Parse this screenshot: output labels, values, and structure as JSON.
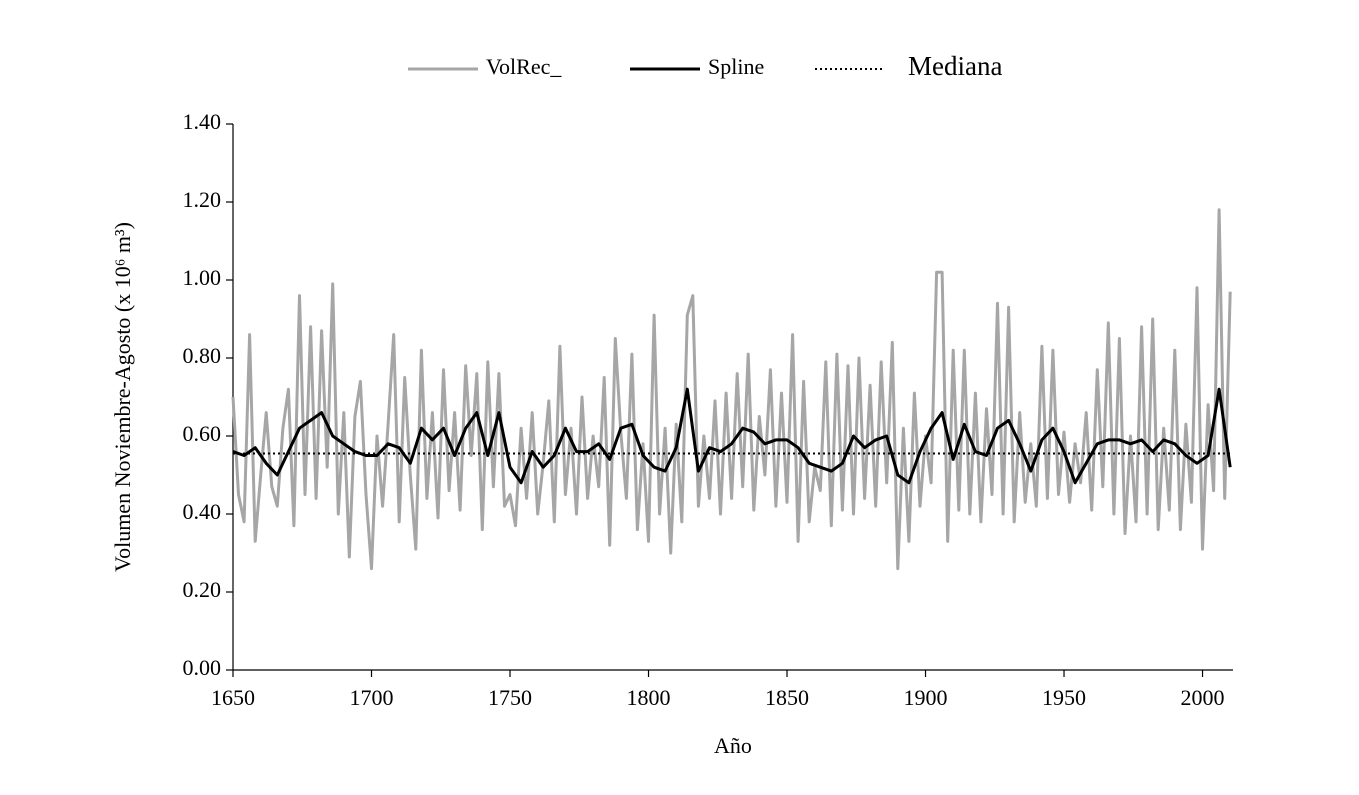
{
  "chart_data": {
    "type": "line",
    "xlabel": "Año",
    "ylabel": "Volumen Noviembre-Agosto (x 10⁶ m³)",
    "xlim": [
      1650,
      2011
    ],
    "xticks": [
      1650,
      1700,
      1750,
      1800,
      1850,
      1900,
      1950,
      2000
    ],
    "ylim": [
      0,
      1.4
    ],
    "yticks": [
      {
        "value": 0,
        "label": "0.00"
      },
      {
        "value": 0.2,
        "label": "0.20"
      },
      {
        "value": 0.4,
        "label": "0.40"
      },
      {
        "value": 0.6,
        "label": "0.60"
      },
      {
        "value": 0.8,
        "label": "0.80"
      },
      {
        "value": 1.0,
        "label": "1.00"
      },
      {
        "value": 1.2,
        "label": "1.20"
      },
      {
        "value": 1.4,
        "label": "1.40"
      }
    ],
    "legend": "top",
    "series": [
      {
        "name": "VolRec_",
        "color": "#a6a6a6",
        "style": "solid",
        "width": 3,
        "x": [
          1650,
          1652,
          1654,
          1656,
          1658,
          1660,
          1662,
          1664,
          1666,
          1668,
          1670,
          1672,
          1674,
          1676,
          1678,
          1680,
          1682,
          1684,
          1686,
          1688,
          1690,
          1692,
          1694,
          1696,
          1698,
          1700,
          1702,
          1704,
          1706,
          1708,
          1710,
          1712,
          1714,
          1716,
          1718,
          1720,
          1722,
          1724,
          1726,
          1728,
          1730,
          1732,
          1734,
          1736,
          1738,
          1740,
          1742,
          1744,
          1746,
          1748,
          1750,
          1752,
          1754,
          1756,
          1758,
          1760,
          1762,
          1764,
          1766,
          1768,
          1770,
          1772,
          1774,
          1776,
          1778,
          1780,
          1782,
          1784,
          1786,
          1788,
          1790,
          1792,
          1794,
          1796,
          1798,
          1800,
          1802,
          1804,
          1806,
          1808,
          1810,
          1812,
          1814,
          1816,
          1818,
          1820,
          1822,
          1824,
          1826,
          1828,
          1830,
          1832,
          1834,
          1836,
          1838,
          1840,
          1842,
          1844,
          1846,
          1848,
          1850,
          1852,
          1854,
          1856,
          1858,
          1860,
          1862,
          1864,
          1866,
          1868,
          1870,
          1872,
          1874,
          1876,
          1878,
          1880,
          1882,
          1884,
          1886,
          1888,
          1890,
          1892,
          1894,
          1896,
          1898,
          1900,
          1902,
          1904,
          1906,
          1908,
          1910,
          1912,
          1914,
          1916,
          1918,
          1920,
          1922,
          1924,
          1926,
          1928,
          1930,
          1932,
          1934,
          1936,
          1938,
          1940,
          1942,
          1944,
          1946,
          1948,
          1950,
          1952,
          1954,
          1956,
          1958,
          1960,
          1962,
          1964,
          1966,
          1968,
          1970,
          1972,
          1974,
          1976,
          1978,
          1980,
          1982,
          1984,
          1986,
          1988,
          1990,
          1992,
          1994,
          1996,
          1998,
          2000,
          2002,
          2004,
          2006,
          2008,
          2010
        ],
        "values": [
          0.7,
          0.45,
          0.38,
          0.86,
          0.33,
          0.5,
          0.66,
          0.47,
          0.42,
          0.62,
          0.72,
          0.37,
          0.96,
          0.45,
          0.88,
          0.44,
          0.87,
          0.52,
          0.99,
          0.4,
          0.66,
          0.29,
          0.65,
          0.74,
          0.45,
          0.26,
          0.6,
          0.42,
          0.63,
          0.86,
          0.38,
          0.75,
          0.5,
          0.31,
          0.82,
          0.44,
          0.66,
          0.39,
          0.77,
          0.46,
          0.66,
          0.41,
          0.78,
          0.55,
          0.76,
          0.36,
          0.79,
          0.47,
          0.76,
          0.42,
          0.45,
          0.37,
          0.62,
          0.44,
          0.66,
          0.4,
          0.53,
          0.69,
          0.38,
          0.83,
          0.45,
          0.62,
          0.4,
          0.7,
          0.44,
          0.6,
          0.47,
          0.75,
          0.32,
          0.85,
          0.61,
          0.44,
          0.81,
          0.36,
          0.58,
          0.33,
          0.91,
          0.4,
          0.62,
          0.3,
          0.63,
          0.38,
          0.91,
          0.96,
          0.42,
          0.6,
          0.44,
          0.69,
          0.4,
          0.71,
          0.44,
          0.76,
          0.47,
          0.81,
          0.41,
          0.65,
          0.5,
          0.77,
          0.42,
          0.71,
          0.43,
          0.86,
          0.33,
          0.74,
          0.38,
          0.52,
          0.46,
          0.79,
          0.37,
          0.81,
          0.41,
          0.78,
          0.4,
          0.8,
          0.44,
          0.73,
          0.42,
          0.79,
          0.48,
          0.84,
          0.26,
          0.62,
          0.33,
          0.71,
          0.42,
          0.6,
          0.48,
          1.02,
          1.02,
          0.33,
          0.82,
          0.41,
          0.82,
          0.4,
          0.71,
          0.38,
          0.67,
          0.45,
          0.94,
          0.4,
          0.93,
          0.38,
          0.66,
          0.43,
          0.58,
          0.42,
          0.83,
          0.44,
          0.82,
          0.45,
          0.61,
          0.43,
          0.58,
          0.48,
          0.66,
          0.41,
          0.77,
          0.47,
          0.89,
          0.4,
          0.85,
          0.35,
          0.6,
          0.38,
          0.88,
          0.4,
          0.9,
          0.36,
          0.62,
          0.41,
          0.82,
          0.36,
          0.63,
          0.43,
          0.98,
          0.31,
          0.68,
          0.46,
          1.18,
          0.44,
          0.97
        ]
      },
      {
        "name": "Spline",
        "color": "#000000",
        "style": "solid",
        "width": 3,
        "x": [
          1650,
          1654,
          1658,
          1662,
          1666,
          1670,
          1674,
          1678,
          1682,
          1686,
          1690,
          1694,
          1698,
          1702,
          1706,
          1710,
          1714,
          1718,
          1722,
          1726,
          1730,
          1734,
          1738,
          1742,
          1746,
          1750,
          1754,
          1758,
          1762,
          1766,
          1770,
          1774,
          1778,
          1782,
          1786,
          1790,
          1794,
          1798,
          1802,
          1806,
          1810,
          1814,
          1818,
          1822,
          1826,
          1830,
          1834,
          1838,
          1842,
          1846,
          1850,
          1854,
          1858,
          1862,
          1866,
          1870,
          1874,
          1878,
          1882,
          1886,
          1890,
          1894,
          1898,
          1902,
          1906,
          1910,
          1914,
          1918,
          1922,
          1926,
          1930,
          1934,
          1938,
          1942,
          1946,
          1950,
          1954,
          1958,
          1962,
          1966,
          1970,
          1974,
          1978,
          1982,
          1986,
          1990,
          1994,
          1998,
          2002,
          2006,
          2010
        ],
        "values": [
          0.56,
          0.55,
          0.57,
          0.53,
          0.5,
          0.56,
          0.62,
          0.64,
          0.66,
          0.6,
          0.58,
          0.56,
          0.55,
          0.55,
          0.58,
          0.57,
          0.53,
          0.62,
          0.59,
          0.62,
          0.55,
          0.62,
          0.66,
          0.55,
          0.66,
          0.52,
          0.48,
          0.56,
          0.52,
          0.55,
          0.62,
          0.56,
          0.56,
          0.58,
          0.54,
          0.62,
          0.63,
          0.55,
          0.52,
          0.51,
          0.57,
          0.72,
          0.51,
          0.57,
          0.56,
          0.58,
          0.62,
          0.61,
          0.58,
          0.59,
          0.59,
          0.57,
          0.53,
          0.52,
          0.51,
          0.53,
          0.6,
          0.57,
          0.59,
          0.6,
          0.5,
          0.48,
          0.56,
          0.62,
          0.66,
          0.54,
          0.63,
          0.56,
          0.55,
          0.62,
          0.64,
          0.58,
          0.51,
          0.59,
          0.62,
          0.56,
          0.48,
          0.53,
          0.58,
          0.59,
          0.59,
          0.58,
          0.59,
          0.56,
          0.59,
          0.58,
          0.55,
          0.53,
          0.55,
          0.72,
          0.52
        ]
      },
      {
        "name": "Mediana",
        "color": "#000000",
        "style": "dotted",
        "width": 2,
        "x": [
          1650,
          2011
        ],
        "values": [
          0.555,
          0.555
        ]
      }
    ]
  }
}
